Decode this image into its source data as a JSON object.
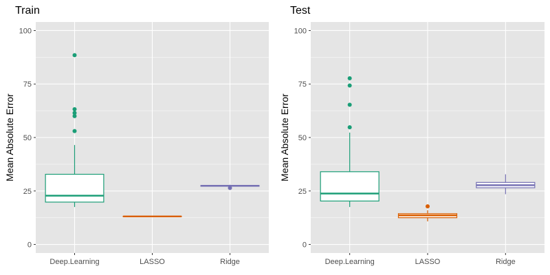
{
  "colors": {
    "Deep.Learning": "#1b9e77",
    "LASSO": "#d95f02",
    "Ridge": "#7570b3",
    "panel_background": "#e5e5e5",
    "gridline": "#ffffff"
  },
  "chart_data": [
    {
      "type": "boxplot",
      "title": "Train",
      "xlabel": "",
      "ylabel": "Mean Absolute Error",
      "categories": [
        "Deep.Learning",
        "LASSO",
        "Ridge"
      ],
      "ylim": [
        -4,
        104
      ],
      "yticks": [
        0,
        25,
        50,
        75,
        100
      ],
      "grid": true,
      "legend": "none",
      "boxes": [
        {
          "category": "Deep.Learning",
          "whisker_low": 17.5,
          "q1": 19.8,
          "median": 22.8,
          "q3": 32.8,
          "whisker_high": 46.5,
          "outliers": [
            53,
            60,
            61.5,
            63.2,
            88.5
          ]
        },
        {
          "category": "LASSO",
          "whisker_low": 12.9,
          "q1": 13.0,
          "median": 13.1,
          "q3": 13.2,
          "whisker_high": 13.3,
          "outliers": []
        },
        {
          "category": "Ridge",
          "whisker_low": 26.9,
          "q1": 27.2,
          "median": 27.4,
          "q3": 27.6,
          "whisker_high": 27.9,
          "outliers": [
            26.4
          ]
        }
      ]
    },
    {
      "type": "boxplot",
      "title": "Test",
      "xlabel": "",
      "ylabel": "Mean Absolute Error",
      "categories": [
        "Deep.Learning",
        "LASSO",
        "Ridge"
      ],
      "ylim": [
        -4,
        104
      ],
      "yticks": [
        0,
        25,
        50,
        75,
        100
      ],
      "grid": true,
      "legend": "none",
      "boxes": [
        {
          "category": "Deep.Learning",
          "whisker_low": 17.5,
          "q1": 20.3,
          "median": 23.8,
          "q3": 34.0,
          "whisker_high": 52.3,
          "outliers": [
            54.8,
            65.3,
            74.3,
            77.7
          ]
        },
        {
          "category": "LASSO",
          "whisker_low": 10.8,
          "q1": 12.5,
          "median": 13.6,
          "q3": 14.4,
          "whisker_high": 16.0,
          "outliers": [
            17.8
          ]
        },
        {
          "category": "Ridge",
          "whisker_low": 23.5,
          "q1": 26.5,
          "median": 27.7,
          "q3": 29.0,
          "whisker_high": 32.8,
          "outliers": []
        }
      ]
    }
  ]
}
